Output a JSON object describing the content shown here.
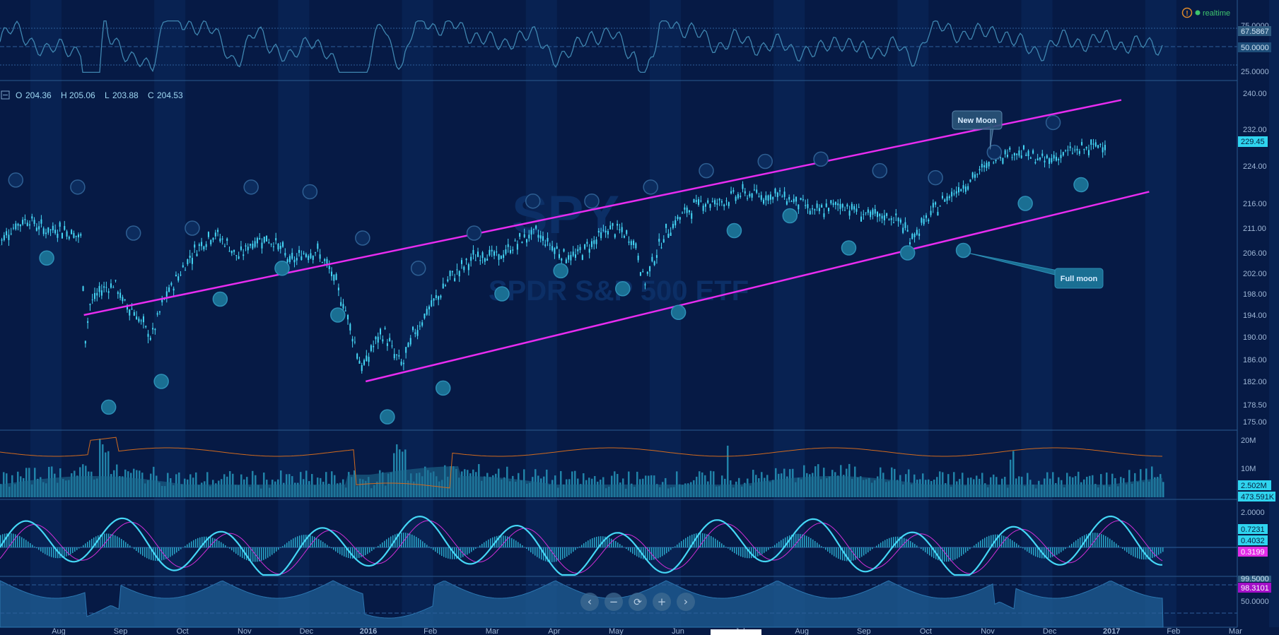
{
  "chart_data": {
    "type": "candlestick",
    "symbol": "SPY",
    "description": "SPDR S&P 500 ETF",
    "realtime_label": "realtime",
    "ohlc": {
      "O": "204.36",
      "H": "205.06",
      "L": "203.88",
      "C": "204.53"
    },
    "ohlc_labels": {
      "O": "O",
      "H": "H",
      "L": "L",
      "C": "C"
    },
    "x_labels": [
      "Aug",
      "Sep",
      "Oct",
      "Nov",
      "Dec",
      "2016",
      "Feb",
      "Mar",
      "Apr",
      "May",
      "Jun",
      "Jul",
      "Aug",
      "Sep",
      "Oct",
      "Nov",
      "Dec",
      "2017",
      "Feb",
      "Mar"
    ],
    "price_axis": {
      "ticks": [
        "240.00",
        "232.00",
        "224.00",
        "216.00",
        "211.00",
        "206.00",
        "202.00",
        "198.00",
        "194.00",
        "190.00",
        "186.00",
        "182.00",
        "178.50",
        "175.00"
      ],
      "tick_values": [
        240,
        232,
        224,
        216,
        211,
        206,
        202,
        198,
        194,
        190,
        186,
        182,
        178.5,
        175
      ],
      "current": "229.45"
    },
    "price_series": [
      {
        "x": 0,
        "y": 207
      },
      {
        "x": 0.3,
        "y": 210
      },
      {
        "x": 0.6,
        "y": 211.5
      },
      {
        "x": 1,
        "y": 213
      },
      {
        "x": 1.4,
        "y": 211
      },
      {
        "x": 1.7,
        "y": 210.5
      },
      {
        "x": 2,
        "y": 211
      },
      {
        "x": 2.4,
        "y": 210
      },
      {
        "x": 2.7,
        "y": 209
      },
      {
        "x": 2.85,
        "y": 190
      },
      {
        "x": 3,
        "y": 196
      },
      {
        "x": 3.4,
        "y": 199
      },
      {
        "x": 3.8,
        "y": 200
      },
      {
        "x": 4.1,
        "y": 196
      },
      {
        "x": 4.4,
        "y": 195
      },
      {
        "x": 4.7,
        "y": 192
      },
      {
        "x": 5,
        "y": 190
      },
      {
        "x": 5.4,
        "y": 197
      },
      {
        "x": 5.8,
        "y": 201
      },
      {
        "x": 6.2,
        "y": 205
      },
      {
        "x": 6.6,
        "y": 208
      },
      {
        "x": 7,
        "y": 210
      },
      {
        "x": 7.4,
        "y": 208
      },
      {
        "x": 7.8,
        "y": 205
      },
      {
        "x": 8.2,
        "y": 208
      },
      {
        "x": 8.6,
        "y": 209
      },
      {
        "x": 9,
        "y": 208
      },
      {
        "x": 9.5,
        "y": 204
      },
      {
        "x": 9.9,
        "y": 206
      },
      {
        "x": 10.3,
        "y": 206.5
      },
      {
        "x": 10.7,
        "y": 203
      },
      {
        "x": 11,
        "y": 199
      },
      {
        "x": 11.3,
        "y": 194
      },
      {
        "x": 11.6,
        "y": 188
      },
      {
        "x": 11.8,
        "y": 184
      },
      {
        "x": 12.1,
        "y": 188
      },
      {
        "x": 12.5,
        "y": 191
      },
      {
        "x": 12.8,
        "y": 187
      },
      {
        "x": 13.1,
        "y": 185
      },
      {
        "x": 13.4,
        "y": 190
      },
      {
        "x": 13.8,
        "y": 194
      },
      {
        "x": 14.2,
        "y": 197
      },
      {
        "x": 14.6,
        "y": 201
      },
      {
        "x": 15,
        "y": 203
      },
      {
        "x": 15.4,
        "y": 205
      },
      {
        "x": 15.8,
        "y": 206
      },
      {
        "x": 16.2,
        "y": 205
      },
      {
        "x": 16.6,
        "y": 207
      },
      {
        "x": 17,
        "y": 209
      },
      {
        "x": 17.4,
        "y": 210
      },
      {
        "x": 17.8,
        "y": 208
      },
      {
        "x": 18.2,
        "y": 206
      },
      {
        "x": 18.6,
        "y": 205
      },
      {
        "x": 19,
        "y": 207
      },
      {
        "x": 19.4,
        "y": 209
      },
      {
        "x": 19.8,
        "y": 211
      },
      {
        "x": 20.2,
        "y": 210
      },
      {
        "x": 20.6,
        "y": 208
      },
      {
        "x": 20.9,
        "y": 200
      },
      {
        "x": 21.2,
        "y": 205
      },
      {
        "x": 21.6,
        "y": 210
      },
      {
        "x": 22,
        "y": 213
      },
      {
        "x": 22.4,
        "y": 215
      },
      {
        "x": 22.8,
        "y": 216.5
      },
      {
        "x": 23.2,
        "y": 216
      },
      {
        "x": 23.6,
        "y": 217
      },
      {
        "x": 24,
        "y": 218
      },
      {
        "x": 24.4,
        "y": 218
      },
      {
        "x": 24.8,
        "y": 217.5
      },
      {
        "x": 25.2,
        "y": 218
      },
      {
        "x": 25.6,
        "y": 217
      },
      {
        "x": 26,
        "y": 216
      },
      {
        "x": 26.4,
        "y": 214
      },
      {
        "x": 26.8,
        "y": 215
      },
      {
        "x": 27.2,
        "y": 216
      },
      {
        "x": 27.6,
        "y": 215
      },
      {
        "x": 28,
        "y": 214
      },
      {
        "x": 28.4,
        "y": 213
      },
      {
        "x": 28.8,
        "y": 213.5
      },
      {
        "x": 29.2,
        "y": 212
      },
      {
        "x": 29.5,
        "y": 209
      },
      {
        "x": 29.8,
        "y": 211
      },
      {
        "x": 30.2,
        "y": 214
      },
      {
        "x": 30.6,
        "y": 217
      },
      {
        "x": 31,
        "y": 219
      },
      {
        "x": 31.4,
        "y": 221
      },
      {
        "x": 31.8,
        "y": 223
      },
      {
        "x": 32.2,
        "y": 226
      },
      {
        "x": 32.6,
        "y": 227
      },
      {
        "x": 33,
        "y": 227
      },
      {
        "x": 33.4,
        "y": 226
      },
      {
        "x": 33.8,
        "y": 225
      },
      {
        "x": 34.2,
        "y": 226
      },
      {
        "x": 34.6,
        "y": 227
      },
      {
        "x": 35,
        "y": 227.5
      },
      {
        "x": 35.4,
        "y": 228
      },
      {
        "x": 35.8,
        "y": 229.45
      }
    ],
    "channel": [
      {
        "name": "upper",
        "x1": 2.8,
        "y1": 194,
        "x2": 36.3,
        "y2": 238.5
      },
      {
        "name": "lower",
        "x1": 11.9,
        "y1": 182,
        "x2": 37.2,
        "y2": 218.5
      }
    ],
    "moon_events": [
      {
        "type": "new",
        "x": 0.6,
        "y": 221
      },
      {
        "type": "full",
        "x": 1.6,
        "y": 205
      },
      {
        "type": "new",
        "x": 2.6,
        "y": 219.5
      },
      {
        "type": "full",
        "x": 3.6,
        "y": 178
      },
      {
        "type": "new",
        "x": 4.4,
        "y": 210
      },
      {
        "type": "full",
        "x": 5.3,
        "y": 182
      },
      {
        "type": "new",
        "x": 6.3,
        "y": 211
      },
      {
        "type": "full",
        "x": 7.2,
        "y": 197
      },
      {
        "type": "new",
        "x": 8.2,
        "y": 219.5
      },
      {
        "type": "full",
        "x": 9.2,
        "y": 203
      },
      {
        "type": "new",
        "x": 10.1,
        "y": 218.5
      },
      {
        "type": "full",
        "x": 11,
        "y": 194
      },
      {
        "type": "new",
        "x": 11.8,
        "y": 209
      },
      {
        "type": "full",
        "x": 12.6,
        "y": 176
      },
      {
        "type": "new",
        "x": 13.6,
        "y": 203
      },
      {
        "type": "full",
        "x": 14.4,
        "y": 181
      },
      {
        "type": "new",
        "x": 15.4,
        "y": 210
      },
      {
        "type": "full",
        "x": 16.3,
        "y": 198
      },
      {
        "type": "new",
        "x": 17.3,
        "y": 216.5
      },
      {
        "type": "full",
        "x": 18.2,
        "y": 202.5
      },
      {
        "type": "new",
        "x": 19.2,
        "y": 216.5
      },
      {
        "type": "full",
        "x": 20.2,
        "y": 199
      },
      {
        "type": "new",
        "x": 21.1,
        "y": 219.5
      },
      {
        "type": "full",
        "x": 22,
        "y": 194.5
      },
      {
        "type": "new",
        "x": 22.9,
        "y": 223
      },
      {
        "type": "full",
        "x": 23.8,
        "y": 210.5
      },
      {
        "type": "new",
        "x": 24.8,
        "y": 225
      },
      {
        "type": "full",
        "x": 25.6,
        "y": 213.5
      },
      {
        "type": "new",
        "x": 26.6,
        "y": 225.5
      },
      {
        "type": "full",
        "x": 27.5,
        "y": 207
      },
      {
        "type": "new",
        "x": 28.5,
        "y": 223
      },
      {
        "type": "full",
        "x": 29.4,
        "y": 206
      },
      {
        "type": "new",
        "x": 30.3,
        "y": 221.5
      },
      {
        "type": "full",
        "x": 31.2,
        "y": 206.5
      },
      {
        "type": "new",
        "x": 32.2,
        "y": 227
      },
      {
        "type": "full",
        "x": 33.2,
        "y": 216
      },
      {
        "type": "new",
        "x": 34.1,
        "y": 233.5
      },
      {
        "type": "full",
        "x": 35,
        "y": 220
      }
    ],
    "callouts": [
      {
        "label": "New Moon",
        "target_x": 32.2,
        "target_y": 227
      },
      {
        "label": "Full moon",
        "target_x": 31.2,
        "target_y": 206.5
      }
    ],
    "rsi": {
      "ticks": [
        "75.0000",
        "25.0000"
      ],
      "tick_values": [
        75,
        25
      ],
      "value": "67.5867",
      "mid": "50.0000"
    },
    "volume": {
      "ticks": [
        "20M",
        "10M"
      ],
      "value": "2.502M",
      "ma": "473.591K"
    },
    "macd": {
      "ticks": [
        "2.0000"
      ],
      "values": [
        "0.7231",
        "0.4032",
        "0.3199"
      ]
    },
    "bottom": {
      "ticks": [
        "50.0000"
      ],
      "value": "98.3101",
      "top": "99.5000"
    },
    "colors": {
      "background": "#061a45",
      "candle": "#45d7f6",
      "channel": "#e82cf0",
      "moon": "#1b6f92",
      "signal": "#d22ed8"
    }
  },
  "toolbar": {
    "prev": "‹",
    "zoom_out": "−",
    "reset": "⟳",
    "zoom_in": "+",
    "next": "›"
  },
  "alert_icon": "!"
}
